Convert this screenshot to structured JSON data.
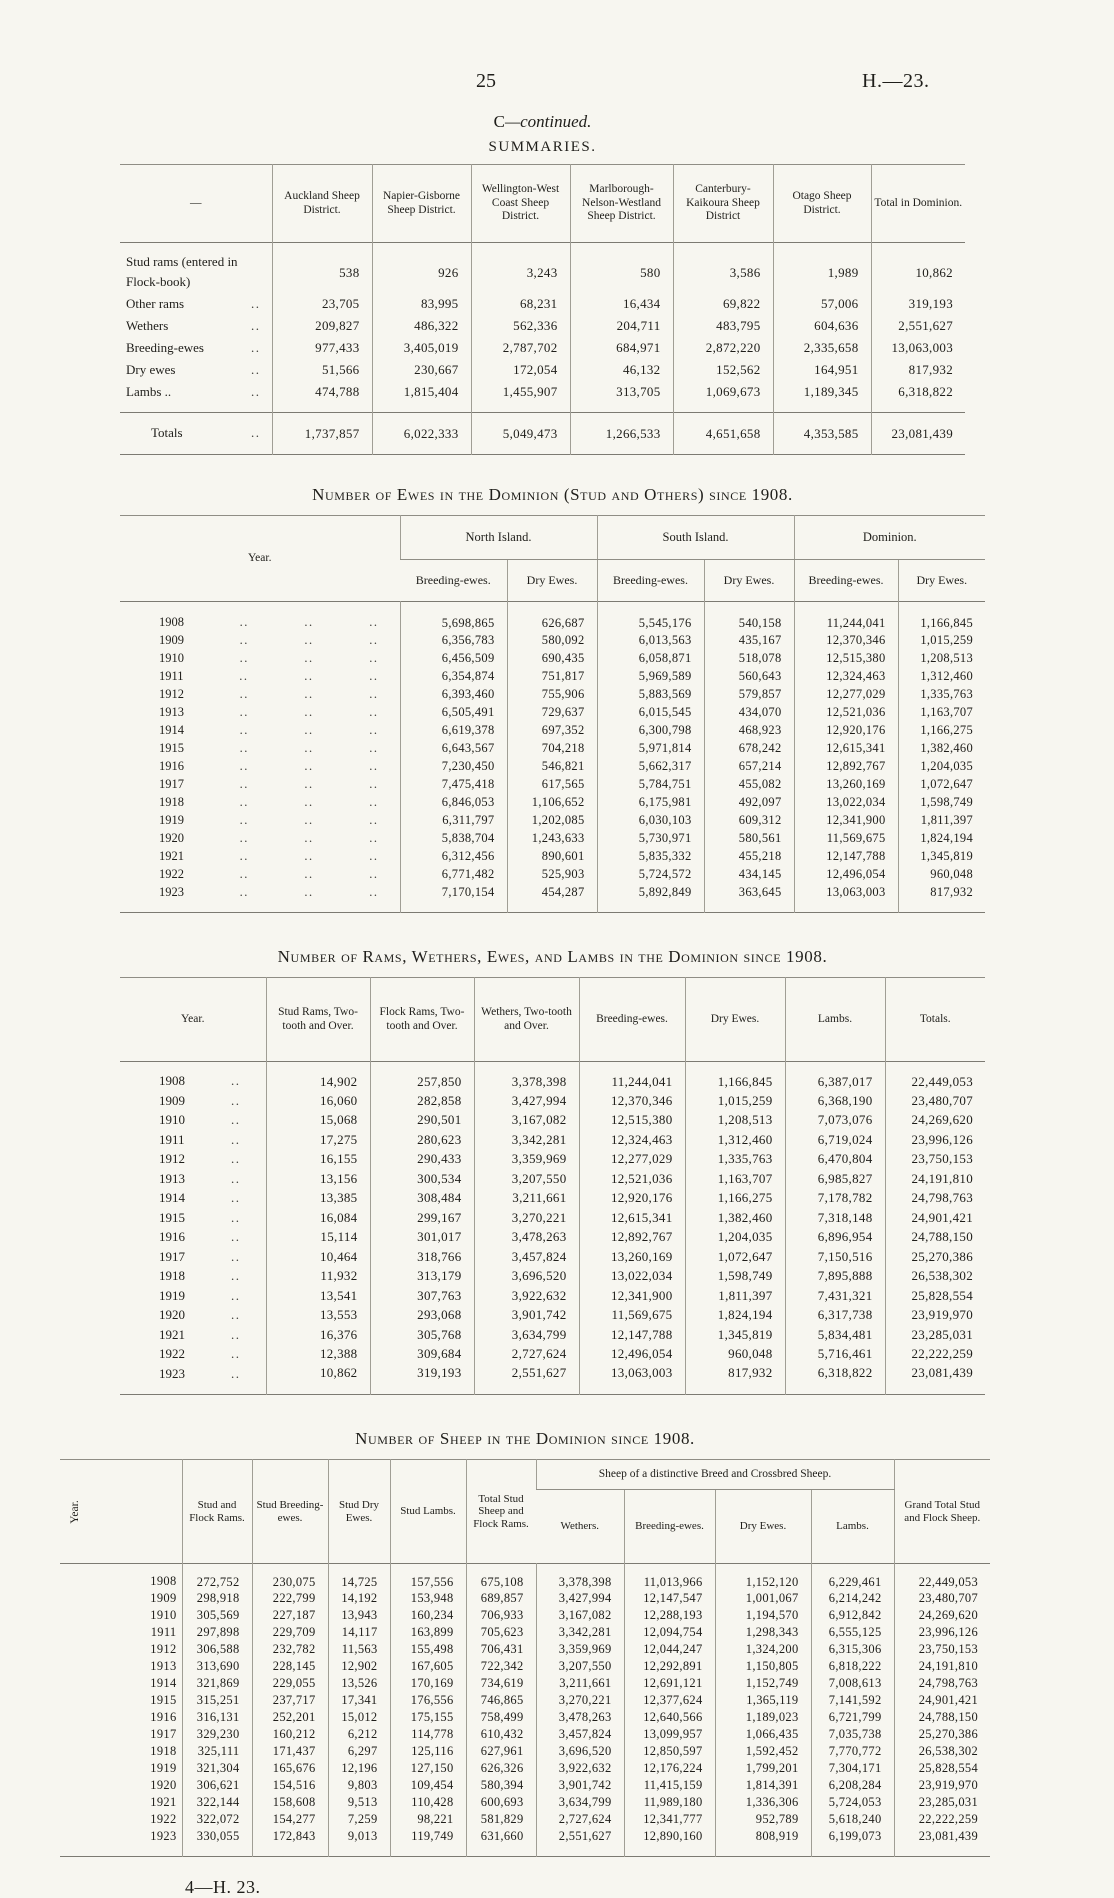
{
  "page": {
    "page_number": "25",
    "doc_ref": "H.—23.",
    "continued_prefix": "C",
    "continued_suffix": "—continued.",
    "section_title": "SUMMARIES.",
    "leader_dots": "..",
    "footer": "4—H. 23."
  },
  "summary_table": {
    "corner_label": "—",
    "columns": [
      "Auckland Sheep District.",
      "Napier-Gisborne Sheep District.",
      "Wellington-West Coast Sheep District.",
      "Marlborough-Nelson-Westland Sheep District.",
      "Canterbury-Kaikoura Sheep District",
      "Otago Sheep District.",
      "Total in Dominion."
    ],
    "rows": [
      {
        "label": "Stud rams (entered in Flock-book)",
        "dots": "",
        "values": [
          "538",
          "926",
          "3,243",
          "580",
          "3,586",
          "1,989",
          "10,862"
        ]
      },
      {
        "label": "Other rams",
        "dots": "..",
        "values": [
          "23,705",
          "83,995",
          "68,231",
          "16,434",
          "69,822",
          "57,006",
          "319,193"
        ]
      },
      {
        "label": "Wethers",
        "dots": "..",
        "values": [
          "209,827",
          "486,322",
          "562,336",
          "204,711",
          "483,795",
          "604,636",
          "2,551,627"
        ]
      },
      {
        "label": "Breeding-ewes",
        "dots": "..",
        "values": [
          "977,433",
          "3,405,019",
          "2,787,702",
          "684,971",
          "2,872,220",
          "2,335,658",
          "13,063,003"
        ]
      },
      {
        "label": "Dry ewes",
        "dots": "..",
        "values": [
          "51,566",
          "230,667",
          "172,054",
          "46,132",
          "152,562",
          "164,951",
          "817,932"
        ]
      },
      {
        "label": "Lambs ..",
        "dots": "..",
        "values": [
          "474,788",
          "1,815,404",
          "1,455,907",
          "313,705",
          "1,069,673",
          "1,189,345",
          "6,318,822"
        ]
      }
    ],
    "totals": {
      "label": "Totals",
      "dots": "..",
      "values": [
        "1,737,857",
        "6,022,333",
        "5,049,473",
        "1,266,533",
        "4,651,658",
        "4,353,585",
        "23,081,439"
      ]
    }
  },
  "ewes_table": {
    "title": "Number of Ewes in the Dominion (Stud and Others) since 1908.",
    "year_header": "Year.",
    "groups": [
      "North Island.",
      "South Island.",
      "Dominion."
    ],
    "sub_columns": [
      "Breeding-ewes.",
      "Dry Ewes."
    ],
    "rows": [
      {
        "year": "1908",
        "values": [
          "5,698,865",
          "626,687",
          "5,545,176",
          "540,158",
          "11,244,041",
          "1,166,845"
        ]
      },
      {
        "year": "1909",
        "values": [
          "6,356,783",
          "580,092",
          "6,013,563",
          "435,167",
          "12,370,346",
          "1,015,259"
        ]
      },
      {
        "year": "1910",
        "values": [
          "6,456,509",
          "690,435",
          "6,058,871",
          "518,078",
          "12,515,380",
          "1,208,513"
        ]
      },
      {
        "year": "1911",
        "values": [
          "6,354,874",
          "751,817",
          "5,969,589",
          "560,643",
          "12,324,463",
          "1,312,460"
        ]
      },
      {
        "year": "1912",
        "values": [
          "6,393,460",
          "755,906",
          "5,883,569",
          "579,857",
          "12,277,029",
          "1,335,763"
        ]
      },
      {
        "year": "1913",
        "values": [
          "6,505,491",
          "729,637",
          "6,015,545",
          "434,070",
          "12,521,036",
          "1,163,707"
        ]
      },
      {
        "year": "1914",
        "values": [
          "6,619,378",
          "697,352",
          "6,300,798",
          "468,923",
          "12,920,176",
          "1,166,275"
        ]
      },
      {
        "year": "1915",
        "values": [
          "6,643,567",
          "704,218",
          "5,971,814",
          "678,242",
          "12,615,341",
          "1,382,460"
        ]
      },
      {
        "year": "1916",
        "values": [
          "7,230,450",
          "546,821",
          "5,662,317",
          "657,214",
          "12,892,767",
          "1,204,035"
        ]
      },
      {
        "year": "1917",
        "values": [
          "7,475,418",
          "617,565",
          "5,784,751",
          "455,082",
          "13,260,169",
          "1,072,647"
        ]
      },
      {
        "year": "1918",
        "values": [
          "6,846,053",
          "1,106,652",
          "6,175,981",
          "492,097",
          "13,022,034",
          "1,598,749"
        ]
      },
      {
        "year": "1919",
        "values": [
          "6,311,797",
          "1,202,085",
          "6,030,103",
          "609,312",
          "12,341,900",
          "1,811,397"
        ]
      },
      {
        "year": "1920",
        "values": [
          "5,838,704",
          "1,243,633",
          "5,730,971",
          "580,561",
          "11,569,675",
          "1,824,194"
        ]
      },
      {
        "year": "1921",
        "values": [
          "6,312,456",
          "890,601",
          "5,835,332",
          "455,218",
          "12,147,788",
          "1,345,819"
        ]
      },
      {
        "year": "1922",
        "values": [
          "6,771,482",
          "525,903",
          "5,724,572",
          "434,145",
          "12,496,054",
          "960,048"
        ]
      },
      {
        "year": "1923",
        "values": [
          "7,170,154",
          "454,287",
          "5,892,849",
          "363,645",
          "13,063,003",
          "817,932"
        ]
      }
    ]
  },
  "rams_table": {
    "title": "Number of Rams, Wethers, Ewes, and Lambs in the Dominion since 1908.",
    "year_header": "Year.",
    "columns": [
      "Stud Rams, Two-tooth and Over.",
      "Flock Rams, Two-tooth and Over.",
      "Wethers, Two-tooth and Over.",
      "Breeding-ewes.",
      "Dry Ewes.",
      "Lambs.",
      "Totals."
    ],
    "rows": [
      {
        "year": "1908",
        "values": [
          "14,902",
          "257,850",
          "3,378,398",
          "11,244,041",
          "1,166,845",
          "6,387,017",
          "22,449,053"
        ]
      },
      {
        "year": "1909",
        "values": [
          "16,060",
          "282,858",
          "3,427,994",
          "12,370,346",
          "1,015,259",
          "6,368,190",
          "23,480,707"
        ]
      },
      {
        "year": "1910",
        "values": [
          "15,068",
          "290,501",
          "3,167,082",
          "12,515,380",
          "1,208,513",
          "7,073,076",
          "24,269,620"
        ]
      },
      {
        "year": "1911",
        "values": [
          "17,275",
          "280,623",
          "3,342,281",
          "12,324,463",
          "1,312,460",
          "6,719,024",
          "23,996,126"
        ]
      },
      {
        "year": "1912",
        "values": [
          "16,155",
          "290,433",
          "3,359,969",
          "12,277,029",
          "1,335,763",
          "6,470,804",
          "23,750,153"
        ]
      },
      {
        "year": "1913",
        "values": [
          "13,156",
          "300,534",
          "3,207,550",
          "12,521,036",
          "1,163,707",
          "6,985,827",
          "24,191,810"
        ]
      },
      {
        "year": "1914",
        "values": [
          "13,385",
          "308,484",
          "3,211,661",
          "12,920,176",
          "1,166,275",
          "7,178,782",
          "24,798,763"
        ]
      },
      {
        "year": "1915",
        "values": [
          "16,084",
          "299,167",
          "3,270,221",
          "12,615,341",
          "1,382,460",
          "7,318,148",
          "24,901,421"
        ]
      },
      {
        "year": "1916",
        "values": [
          "15,114",
          "301,017",
          "3,478,263",
          "12,892,767",
          "1,204,035",
          "6,896,954",
          "24,788,150"
        ]
      },
      {
        "year": "1917",
        "values": [
          "10,464",
          "318,766",
          "3,457,824",
          "13,260,169",
          "1,072,647",
          "7,150,516",
          "25,270,386"
        ]
      },
      {
        "year": "1918",
        "values": [
          "11,932",
          "313,179",
          "3,696,520",
          "13,022,034",
          "1,598,749",
          "7,895,888",
          "26,538,302"
        ]
      },
      {
        "year": "1919",
        "values": [
          "13,541",
          "307,763",
          "3,922,632",
          "12,341,900",
          "1,811,397",
          "7,431,321",
          "25,828,554"
        ]
      },
      {
        "year": "1920",
        "values": [
          "13,553",
          "293,068",
          "3,901,742",
          "11,569,675",
          "1,824,194",
          "6,317,738",
          "23,919,970"
        ]
      },
      {
        "year": "1921",
        "values": [
          "16,376",
          "305,768",
          "3,634,799",
          "12,147,788",
          "1,345,819",
          "5,834,481",
          "23,285,031"
        ]
      },
      {
        "year": "1922",
        "values": [
          "12,388",
          "309,684",
          "2,727,624",
          "12,496,054",
          "960,048",
          "5,716,461",
          "22,222,259"
        ]
      },
      {
        "year": "1923",
        "values": [
          "10,862",
          "319,193",
          "2,551,627",
          "13,063,003",
          "817,932",
          "6,318,822",
          "23,081,439"
        ]
      }
    ]
  },
  "sheep_table": {
    "title": "Number of Sheep in the Dominion since 1908.",
    "year_header": "Year.",
    "stud_columns": [
      "Stud and Flock Rams.",
      "Stud Breeding-ewes.",
      "Stud Dry Ewes.",
      "Stud Lambs.",
      "Total Stud Sheep and Flock Rams."
    ],
    "group_header": "Sheep of a distinctive Breed and Crossbred Sheep.",
    "group_columns": [
      "Wethers.",
      "Breeding-ewes.",
      "Dry Ewes.",
      "Lambs."
    ],
    "grand_total_column": "Grand Total Stud and Flock Sheep.",
    "rows": [
      {
        "year": "1908",
        "values": [
          "272,752",
          "230,075",
          "14,725",
          "157,556",
          "675,108",
          "3,378,398",
          "11,013,966",
          "1,152,120",
          "6,229,461",
          "22,449,053"
        ]
      },
      {
        "year": "1909",
        "values": [
          "298,918",
          "222,799",
          "14,192",
          "153,948",
          "689,857",
          "3,427,994",
          "12,147,547",
          "1,001,067",
          "6,214,242",
          "23,480,707"
        ]
      },
      {
        "year": "1910",
        "values": [
          "305,569",
          "227,187",
          "13,943",
          "160,234",
          "706,933",
          "3,167,082",
          "12,288,193",
          "1,194,570",
          "6,912,842",
          "24,269,620"
        ]
      },
      {
        "year": "1911",
        "values": [
          "297,898",
          "229,709",
          "14,117",
          "163,899",
          "705,623",
          "3,342,281",
          "12,094,754",
          "1,298,343",
          "6,555,125",
          "23,996,126"
        ]
      },
      {
        "year": "1912",
        "values": [
          "306,588",
          "232,782",
          "11,563",
          "155,498",
          "706,431",
          "3,359,969",
          "12,044,247",
          "1,324,200",
          "6,315,306",
          "23,750,153"
        ]
      },
      {
        "year": "1913",
        "values": [
          "313,690",
          "228,145",
          "12,902",
          "167,605",
          "722,342",
          "3,207,550",
          "12,292,891",
          "1,150,805",
          "6,818,222",
          "24,191,810"
        ]
      },
      {
        "year": "1914",
        "values": [
          "321,869",
          "229,055",
          "13,526",
          "170,169",
          "734,619",
          "3,211,661",
          "12,691,121",
          "1,152,749",
          "7,008,613",
          "24,798,763"
        ]
      },
      {
        "year": "1915",
        "values": [
          "315,251",
          "237,717",
          "17,341",
          "176,556",
          "746,865",
          "3,270,221",
          "12,377,624",
          "1,365,119",
          "7,141,592",
          "24,901,421"
        ]
      },
      {
        "year": "1916",
        "values": [
          "316,131",
          "252,201",
          "15,012",
          "175,155",
          "758,499",
          "3,478,263",
          "12,640,566",
          "1,189,023",
          "6,721,799",
          "24,788,150"
        ]
      },
      {
        "year": "1917",
        "values": [
          "329,230",
          "160,212",
          "6,212",
          "114,778",
          "610,432",
          "3,457,824",
          "13,099,957",
          "1,066,435",
          "7,035,738",
          "25,270,386"
        ]
      },
      {
        "year": "1918",
        "values": [
          "325,111",
          "171,437",
          "6,297",
          "125,116",
          "627,961",
          "3,696,520",
          "12,850,597",
          "1,592,452",
          "7,770,772",
          "26,538,302"
        ]
      },
      {
        "year": "1919",
        "values": [
          "321,304",
          "165,676",
          "12,196",
          "127,150",
          "626,326",
          "3,922,632",
          "12,176,224",
          "1,799,201",
          "7,304,171",
          "25,828,554"
        ]
      },
      {
        "year": "1920",
        "values": [
          "306,621",
          "154,516",
          "9,803",
          "109,454",
          "580,394",
          "3,901,742",
          "11,415,159",
          "1,814,391",
          "6,208,284",
          "23,919,970"
        ]
      },
      {
        "year": "1921",
        "values": [
          "322,144",
          "158,608",
          "9,513",
          "110,428",
          "600,693",
          "3,634,799",
          "11,989,180",
          "1,336,306",
          "5,724,053",
          "23,285,031"
        ]
      },
      {
        "year": "1922",
        "values": [
          "322,072",
          "154,277",
          "7,259",
          "98,221",
          "581,829",
          "2,727,624",
          "12,341,777",
          "952,789",
          "5,618,240",
          "22,222,259"
        ]
      },
      {
        "year": "1923",
        "values": [
          "330,055",
          "172,843",
          "9,013",
          "119,749",
          "631,660",
          "2,551,627",
          "12,890,160",
          "808,919",
          "6,199,073",
          "23,081,439"
        ]
      }
    ]
  }
}
